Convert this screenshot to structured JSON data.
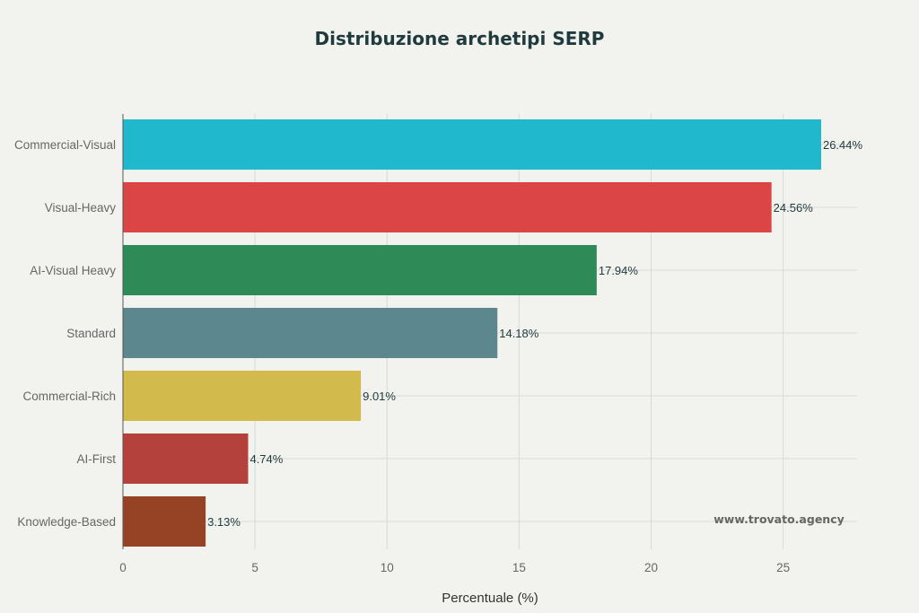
{
  "chart_data": {
    "type": "bar",
    "orientation": "horizontal",
    "title": "Distribuzione archetipi SERP",
    "xlabel": "Percentuale (%)",
    "ylabel": "",
    "categories": [
      "Commercial-Visual",
      "Visual-Heavy",
      "AI-Visual Heavy",
      "Standard",
      "Commercial-Rich",
      "AI-First",
      "Knowledge-Based"
    ],
    "values": [
      26.44,
      24.56,
      17.94,
      14.18,
      9.01,
      4.74,
      3.13
    ],
    "data_labels": [
      "26.44%",
      "24.56%",
      "17.94%",
      "14.18%",
      "9.01%",
      "4.74%",
      "3.13%"
    ],
    "colors": [
      "#1fb8cd",
      "#db4545",
      "#2e8b57",
      "#5d878f",
      "#d2ba4c",
      "#b4413c",
      "#964325"
    ],
    "xlim": [
      0,
      27.8
    ],
    "xticks": [
      0,
      5,
      10,
      15,
      20,
      25
    ],
    "xtick_labels": [
      "0",
      "5",
      "10",
      "15",
      "20",
      "25"
    ],
    "grid": true,
    "legend": "none",
    "watermark": "www.trovato.agency"
  }
}
